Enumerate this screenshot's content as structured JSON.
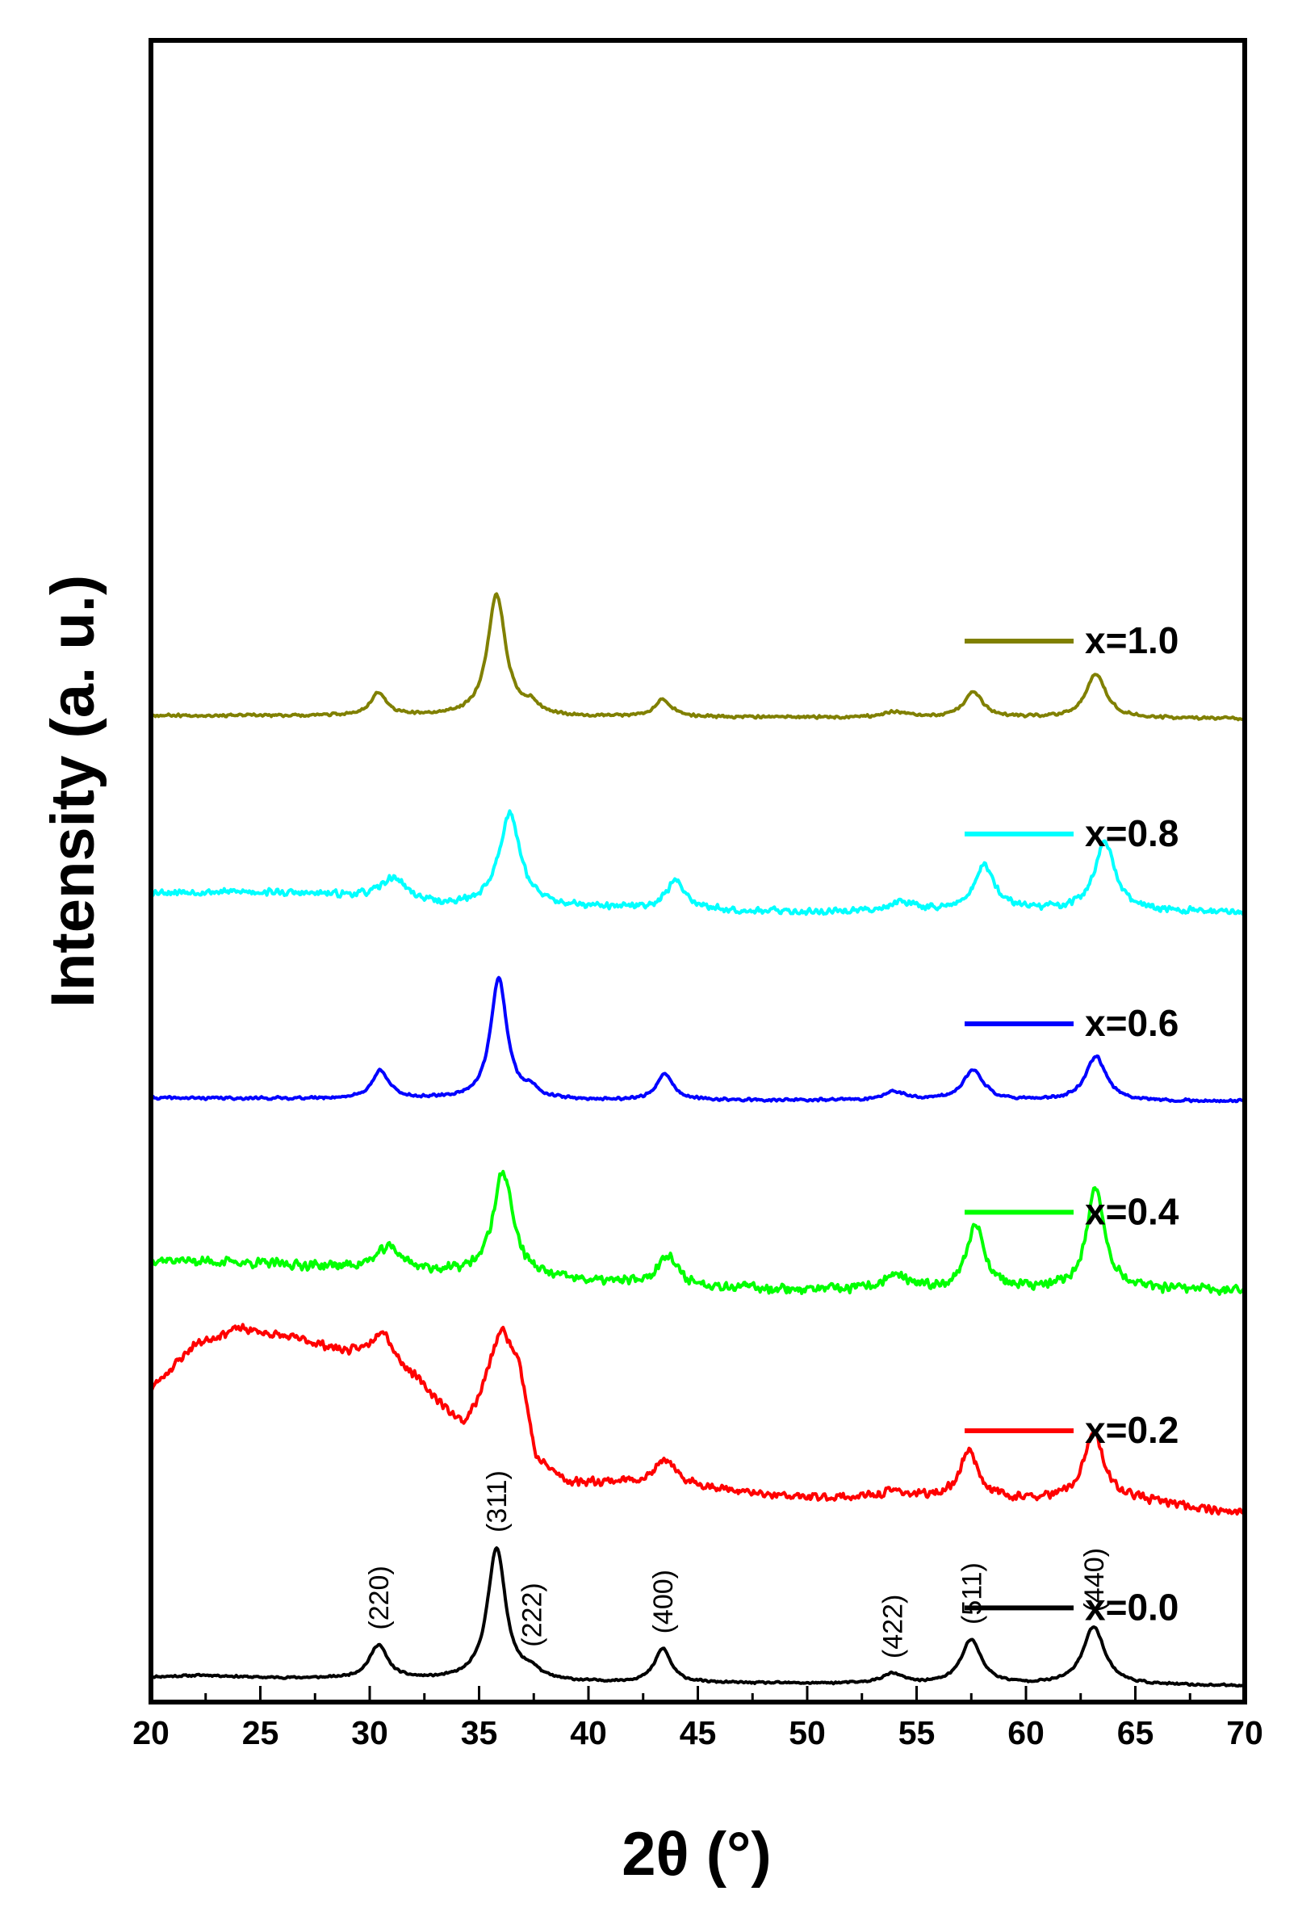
{
  "chart_data": {
    "type": "line",
    "title": "",
    "xlabel": "2θ (°)",
    "ylabel": "Intensity (a. u.)",
    "xlim": [
      20,
      70
    ],
    "xticks": [
      20,
      25,
      30,
      35,
      40,
      45,
      50,
      55,
      60,
      65,
      70
    ],
    "xtick_labels": [
      "20",
      "25",
      "30",
      "35",
      "40",
      "45",
      "50",
      "55",
      "60",
      "65",
      "70"
    ],
    "y_axis": "stacked offsets, arbitrary units (no tick labels)",
    "legend_position": "right of each curve",
    "peak_labels": [
      {
        "label": "(220)",
        "x": 30.4
      },
      {
        "label": "(311)",
        "x": 35.8
      },
      {
        "label": "(222)",
        "x": 37.4
      },
      {
        "label": "(400)",
        "x": 43.4
      },
      {
        "label": "(422)",
        "x": 53.9
      },
      {
        "label": "(511)",
        "x": 57.5
      },
      {
        "label": "(440)",
        "x": 63.1
      }
    ],
    "series": [
      {
        "name": "x=0.0",
        "color": "#000000",
        "offset": 0,
        "noise": 1.5,
        "seed": 11,
        "baseline": [
          [
            20,
            13
          ],
          [
            22.5,
            15
          ],
          [
            25,
            12
          ],
          [
            30,
            10
          ],
          [
            40,
            6
          ],
          [
            55,
            4
          ],
          [
            70,
            2
          ]
        ],
        "peaks": [
          [
            30.4,
            42,
            0.5
          ],
          [
            35.8,
            165,
            0.5
          ],
          [
            37.4,
            10,
            0.45
          ],
          [
            43.4,
            42,
            0.45
          ],
          [
            53.9,
            12,
            0.6
          ],
          [
            57.5,
            55,
            0.55
          ],
          [
            63.1,
            72,
            0.6
          ]
        ]
      },
      {
        "name": "x=0.2",
        "color": "#ff0000",
        "offset": 210,
        "noise": 6,
        "seed": 23,
        "baseline": [
          [
            20,
            160
          ],
          [
            22,
            215
          ],
          [
            24,
            235
          ],
          [
            27,
            220
          ],
          [
            29,
            205
          ],
          [
            30.5,
            205
          ],
          [
            32,
            175
          ],
          [
            33.5,
            135
          ],
          [
            34.3,
            118
          ],
          [
            35,
            150
          ],
          [
            36,
            235
          ],
          [
            36.8,
            200
          ],
          [
            37.6,
            75
          ],
          [
            39,
            45
          ],
          [
            42,
            45
          ],
          [
            45,
            40
          ],
          [
            48,
            28
          ],
          [
            50,
            25
          ],
          [
            55,
            25
          ],
          [
            60,
            22
          ],
          [
            65,
            22
          ],
          [
            70,
            5
          ]
        ],
        "peaks": [
          [
            30.6,
            30,
            0.5
          ],
          [
            43.5,
            30,
            0.5
          ],
          [
            54,
            8,
            0.6
          ],
          [
            57.4,
            60,
            0.5
          ],
          [
            63.1,
            82,
            0.55
          ]
        ]
      },
      {
        "name": "x=0.4",
        "color": "#00ff00",
        "offset": 480,
        "noise": 7,
        "seed": 37,
        "baseline": [
          [
            20,
            50
          ],
          [
            25,
            45
          ],
          [
            30,
            38
          ],
          [
            40,
            22
          ],
          [
            50,
            12
          ],
          [
            60,
            12
          ],
          [
            70,
            12
          ]
        ],
        "peaks": [
          [
            30.9,
            28,
            0.7
          ],
          [
            36.1,
            130,
            0.55
          ],
          [
            43.6,
            38,
            0.5
          ],
          [
            54,
            18,
            0.6
          ],
          [
            57.7,
            80,
            0.5
          ],
          [
            63.2,
            125,
            0.5
          ]
        ]
      },
      {
        "name": "x=0.6",
        "color": "#0000ff",
        "offset": 725,
        "noise": 2,
        "seed": 41,
        "baseline": [
          [
            20,
            5
          ],
          [
            30,
            4
          ],
          [
            40,
            2
          ],
          [
            55,
            2
          ],
          [
            70,
            1
          ]
        ],
        "peaks": [
          [
            30.5,
            35,
            0.45
          ],
          [
            35.9,
            150,
            0.45
          ],
          [
            37.4,
            10,
            0.4
          ],
          [
            43.5,
            32,
            0.45
          ],
          [
            54,
            10,
            0.6
          ],
          [
            57.6,
            38,
            0.55
          ],
          [
            63.2,
            55,
            0.55
          ]
        ]
      },
      {
        "name": "x=0.8",
        "color": "#00ffff",
        "offset": 955,
        "noise": 5,
        "seed": 53,
        "baseline": [
          [
            20,
            30
          ],
          [
            25,
            30
          ],
          [
            29,
            25
          ],
          [
            33.5,
            12
          ],
          [
            40,
            10
          ],
          [
            50,
            5
          ],
          [
            60,
            8
          ],
          [
            70,
            5
          ]
        ],
        "peaks": [
          [
            31.1,
            28,
            0.7
          ],
          [
            36.4,
            115,
            0.6
          ],
          [
            44,
            35,
            0.55
          ],
          [
            54.3,
            12,
            0.6
          ],
          [
            58.1,
            55,
            0.55
          ],
          [
            63.6,
            85,
            0.55
          ]
        ]
      },
      {
        "name": "x=1.0",
        "color": "#808000",
        "offset": 1200,
        "noise": 2,
        "seed": 67,
        "baseline": [
          [
            20,
            4
          ],
          [
            30,
            3
          ],
          [
            40,
            2
          ],
          [
            55,
            1
          ],
          [
            70,
            0
          ]
        ],
        "peaks": [
          [
            30.4,
            28,
            0.45
          ],
          [
            35.8,
            150,
            0.5
          ],
          [
            37.4,
            12,
            0.4
          ],
          [
            43.4,
            22,
            0.45
          ],
          [
            54,
            7,
            0.6
          ],
          [
            57.6,
            32,
            0.5
          ],
          [
            63.2,
            55,
            0.55
          ]
        ]
      }
    ]
  }
}
